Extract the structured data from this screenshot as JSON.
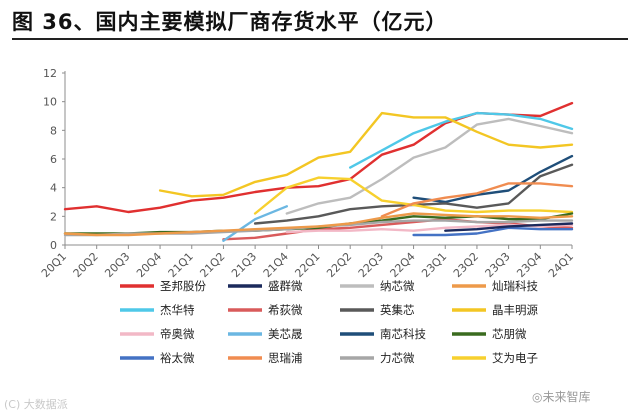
{
  "header": {
    "title": "图 36、国内主要模拟厂商存货水平（亿元）"
  },
  "watermarks": {
    "left": "(C) 大数据派",
    "right": "◎未来智库"
  },
  "chart_data": {
    "type": "line",
    "title": "图 36、国内主要模拟厂商存货水平（亿元）",
    "xlabel": "",
    "ylabel": "",
    "ylim": [
      0,
      12
    ],
    "yticks": [
      0,
      2,
      4,
      6,
      8,
      10,
      12
    ],
    "grid": false,
    "legend_position": "bottom",
    "categories": [
      "20Q1",
      "20Q2",
      "20Q3",
      "20Q4",
      "21Q1",
      "21Q2",
      "21Q3",
      "21Q4",
      "22Q1",
      "22Q2",
      "22Q3",
      "22Q4",
      "23Q1",
      "23Q2",
      "23Q3",
      "23Q4",
      "24Q1"
    ],
    "series": [
      {
        "name": "圣邦股份",
        "color": "#e03030",
        "values": [
          2.5,
          2.7,
          2.3,
          2.6,
          3.1,
          3.3,
          3.7,
          4.0,
          4.1,
          4.6,
          6.3,
          7.0,
          8.5,
          9.2,
          9.1,
          9.0,
          9.9
        ]
      },
      {
        "name": "纳芯微",
        "color": "#bdbdbd",
        "values": [
          null,
          null,
          null,
          null,
          null,
          null,
          null,
          2.2,
          2.9,
          3.3,
          4.6,
          6.1,
          6.8,
          8.4,
          8.8,
          8.3,
          7.8
        ]
      },
      {
        "name": "杰华特",
        "color": "#4fc8e8",
        "values": [
          null,
          null,
          null,
          null,
          null,
          null,
          null,
          null,
          null,
          5.4,
          6.6,
          7.8,
          8.6,
          9.2,
          9.1,
          8.8,
          8.1
        ]
      },
      {
        "name": "晶丰明源",
        "color": "#f3c623",
        "values": [
          null,
          null,
          null,
          3.8,
          3.4,
          3.5,
          4.4,
          4.9,
          6.1,
          6.5,
          9.2,
          8.9,
          8.9,
          7.9,
          7.0,
          6.8,
          7.0
        ]
      },
      {
        "name": "南芯科技",
        "color": "#1f4e79",
        "values": [
          null,
          null,
          null,
          null,
          null,
          null,
          null,
          null,
          null,
          null,
          null,
          3.3,
          3.0,
          3.5,
          3.8,
          5.1,
          6.2
        ]
      },
      {
        "name": "英集芯",
        "color": "#595959",
        "values": [
          null,
          null,
          null,
          null,
          null,
          null,
          1.5,
          1.7,
          2.0,
          2.5,
          2.7,
          2.8,
          2.9,
          2.6,
          2.9,
          4.8,
          5.6
        ]
      },
      {
        "name": "艾为电子",
        "color": "#f7d02e",
        "values": [
          null,
          null,
          null,
          null,
          null,
          null,
          2.2,
          4.0,
          4.7,
          4.6,
          3.1,
          2.8,
          2.4,
          2.3,
          2.4,
          2.4,
          2.3
        ]
      },
      {
        "name": "思瑞浦",
        "color": "#f08c50",
        "values": [
          null,
          null,
          null,
          null,
          null,
          null,
          null,
          null,
          null,
          null,
          2.0,
          2.9,
          3.3,
          3.6,
          4.3,
          4.3,
          4.1
        ]
      },
      {
        "name": "希荻微",
        "color": "#d95b5b",
        "values": [
          null,
          null,
          null,
          null,
          null,
          0.4,
          0.5,
          0.8,
          1.1,
          1.2,
          1.4,
          1.6,
          1.8,
          1.6,
          1.5,
          1.3,
          1.2
        ]
      },
      {
        "name": "美芯晟",
        "color": "#6bb7e2",
        "values": [
          null,
          null,
          null,
          null,
          null,
          0.3,
          1.8,
          2.7,
          null,
          null,
          null,
          null,
          null,
          null,
          null,
          null,
          null
        ]
      },
      {
        "name": "芯朋微",
        "color": "#3a6b1f",
        "values": [
          0.8,
          0.8,
          0.8,
          0.9,
          0.9,
          1.0,
          1.0,
          1.1,
          1.2,
          1.5,
          1.7,
          2.0,
          1.9,
          2.0,
          1.8,
          1.8,
          2.2
        ]
      },
      {
        "name": "力芯微",
        "color": "#a6a6a6",
        "values": [
          0.7,
          0.7,
          0.8,
          0.8,
          0.8,
          0.9,
          1.0,
          1.1,
          1.3,
          1.4,
          1.6,
          1.7,
          1.7,
          1.6,
          1.6,
          1.7,
          1.7
        ]
      },
      {
        "name": "帝奥微",
        "color": "#f2b8c6",
        "values": [
          null,
          null,
          null,
          null,
          null,
          null,
          null,
          0.9,
          1.0,
          1.0,
          1.1,
          1.0,
          1.2,
          1.3,
          1.4,
          1.3,
          1.4
        ]
      },
      {
        "name": "裕太微",
        "color": "#4472c4",
        "values": [
          null,
          null,
          null,
          null,
          null,
          null,
          null,
          null,
          null,
          null,
          null,
          0.7,
          0.7,
          0.8,
          1.2,
          1.1,
          1.1
        ]
      },
      {
        "name": "灿瑞科技",
        "color": "#ed9a4a",
        "values": [
          0.8,
          0.7,
          0.7,
          0.8,
          0.9,
          1.0,
          1.1,
          1.2,
          1.3,
          1.5,
          1.9,
          2.2,
          2.1,
          2.0,
          2.0,
          1.9,
          2.0
        ]
      },
      {
        "name": "盛群微",
        "color": "#1b2a5c",
        "values": [
          null,
          null,
          null,
          null,
          null,
          null,
          null,
          null,
          null,
          null,
          null,
          null,
          1.0,
          1.1,
          1.3,
          1.4,
          1.5
        ]
      }
    ],
    "legend": [
      {
        "name": "圣邦股份",
        "color": "#e03030"
      },
      {
        "name": "盛群微",
        "color": "#1b2a5c"
      },
      {
        "name": "纳芯微",
        "color": "#bdbdbd"
      },
      {
        "name": "灿瑞科技",
        "color": "#ed9a4a"
      },
      {
        "name": "杰华特",
        "color": "#4fc8e8"
      },
      {
        "name": "希荻微",
        "color": "#d95b5b"
      },
      {
        "name": "英集芯",
        "color": "#595959"
      },
      {
        "name": "晶丰明源",
        "color": "#f3c623"
      },
      {
        "name": "帝奥微",
        "color": "#f2b8c6"
      },
      {
        "name": "美芯晟",
        "color": "#6bb7e2"
      },
      {
        "name": "南芯科技",
        "color": "#1f4e79"
      },
      {
        "name": "芯朋微",
        "color": "#3a6b1f"
      },
      {
        "name": "裕太微",
        "color": "#4472c4"
      },
      {
        "name": "思瑞浦",
        "color": "#f08c50"
      },
      {
        "name": "力芯微",
        "color": "#a6a6a6"
      },
      {
        "name": "艾为电子",
        "color": "#f7d02e"
      }
    ]
  }
}
